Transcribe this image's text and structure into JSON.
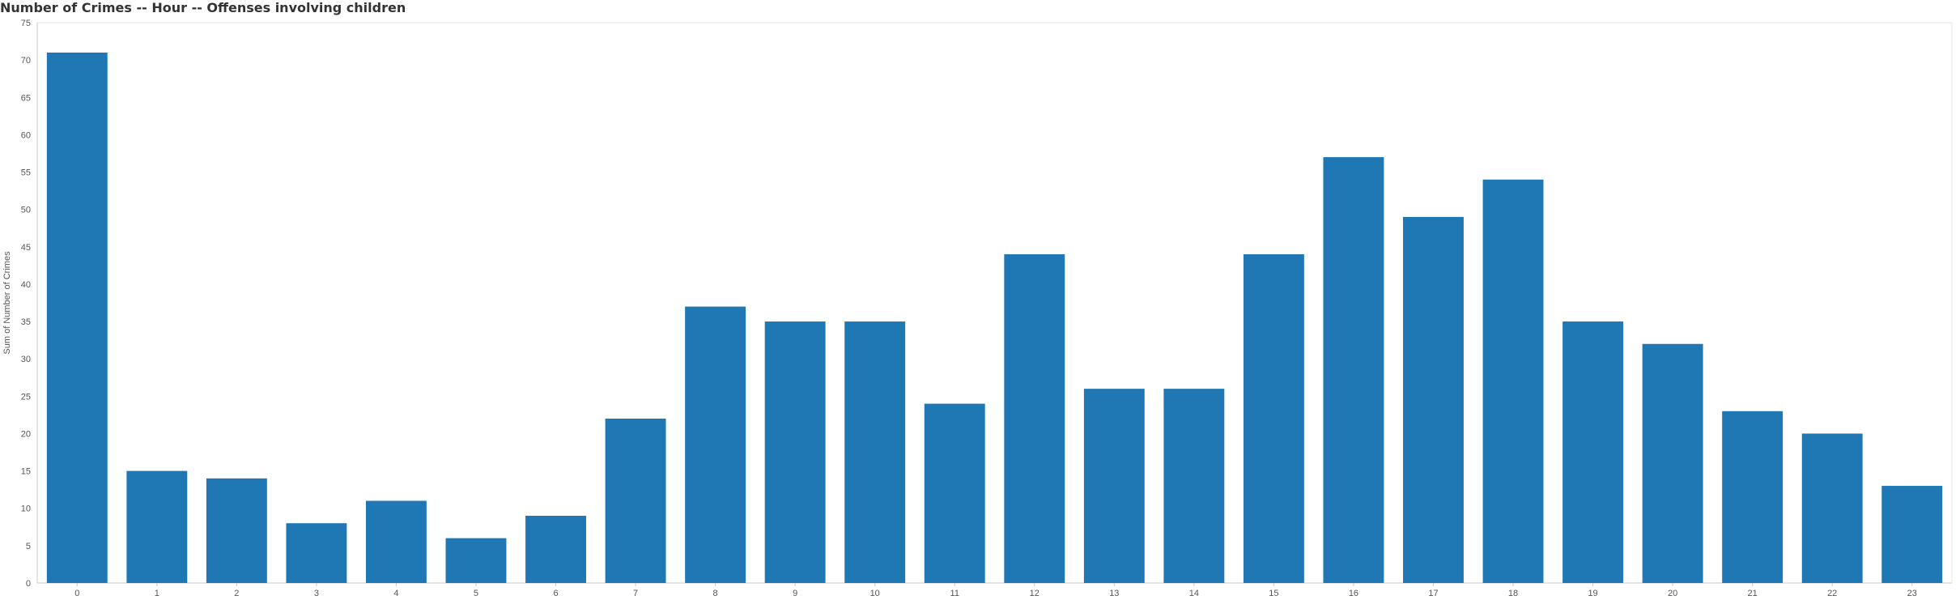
{
  "chart_data": {
    "type": "bar",
    "title": "Number of Crimes --  Hour -- Offenses involving children",
    "xlabel": "",
    "ylabel": "Sum of Number of Crimes",
    "categories": [
      "0",
      "1",
      "2",
      "3",
      "4",
      "5",
      "6",
      "7",
      "8",
      "9",
      "10",
      "11",
      "12",
      "13",
      "14",
      "15",
      "16",
      "17",
      "18",
      "19",
      "20",
      "21",
      "22",
      "23"
    ],
    "values": [
      71,
      15,
      14,
      8,
      11,
      6,
      9,
      22,
      37,
      35,
      35,
      24,
      44,
      26,
      26,
      44,
      57,
      49,
      54,
      35,
      32,
      23,
      20,
      13
    ],
    "ylim": [
      0,
      75
    ],
    "yticks": [
      0,
      5,
      10,
      15,
      20,
      25,
      30,
      35,
      40,
      45,
      50,
      55,
      60,
      65,
      70,
      75
    ],
    "grid": false,
    "bar_color": "#1f77b4"
  }
}
